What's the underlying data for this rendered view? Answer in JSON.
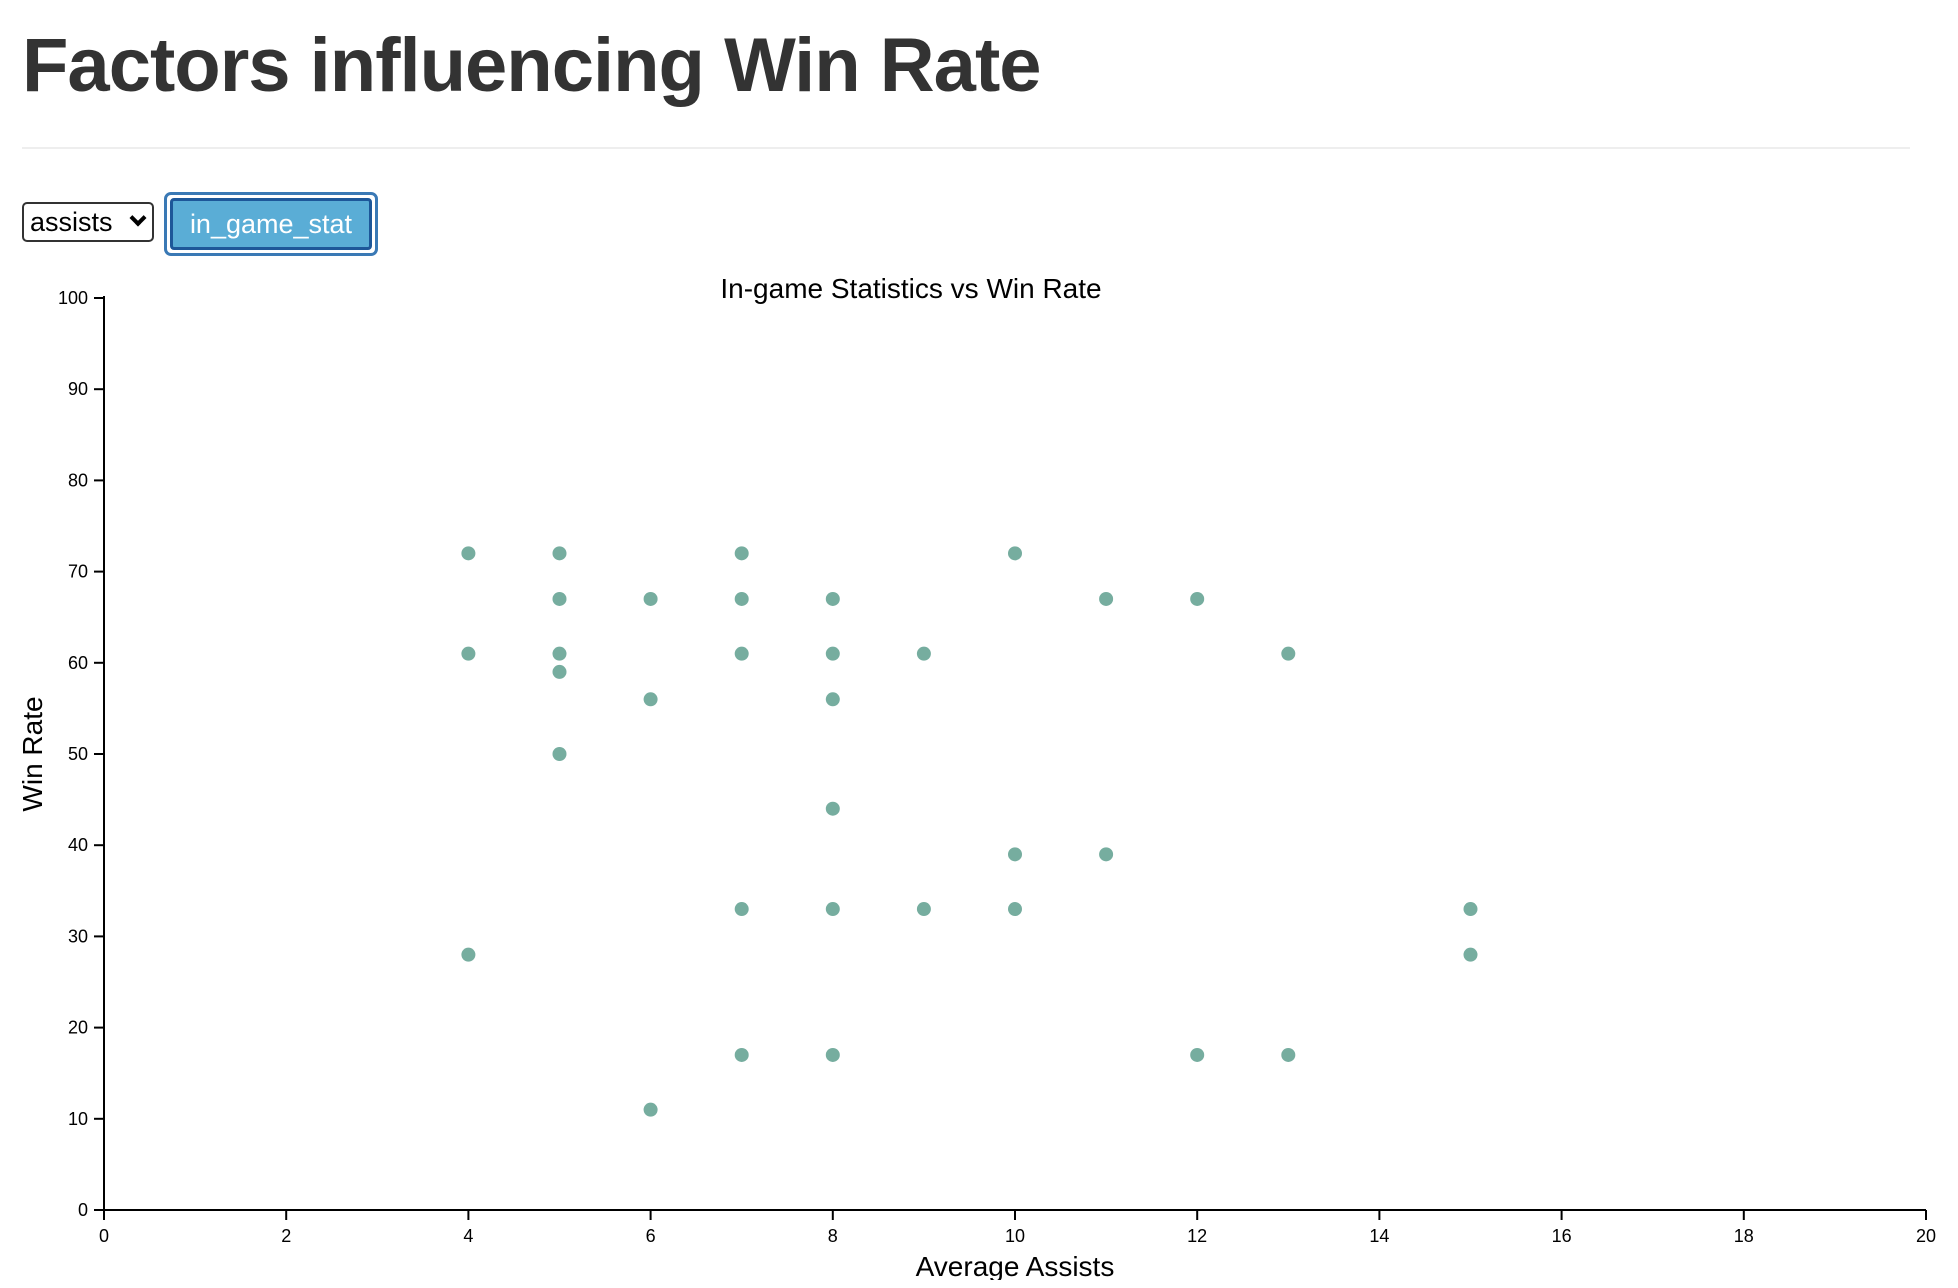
{
  "page": {
    "title": "Factors influencing Win Rate"
  },
  "controls": {
    "select_value": "assists",
    "button_label": "in_game_stat"
  },
  "colors": {
    "point": "#76ad9f",
    "axis": "#000000",
    "button_fill": "#5aadd6",
    "button_border": "#1d5799"
  },
  "chart_data": {
    "type": "scatter",
    "title": "In-game Statistics vs Win Rate",
    "xlabel": "Average Assists",
    "ylabel": "Win Rate",
    "xlim": [
      0,
      20
    ],
    "ylim": [
      0,
      100
    ],
    "x_ticks": [
      0,
      2,
      4,
      6,
      8,
      10,
      12,
      14,
      16,
      18,
      20
    ],
    "y_ticks": [
      0,
      10,
      20,
      30,
      40,
      50,
      60,
      70,
      80,
      90,
      100
    ],
    "grid": false,
    "points": [
      {
        "x": 4,
        "y": 72
      },
      {
        "x": 4,
        "y": 61
      },
      {
        "x": 4,
        "y": 28
      },
      {
        "x": 5,
        "y": 72
      },
      {
        "x": 5,
        "y": 67
      },
      {
        "x": 5,
        "y": 61
      },
      {
        "x": 5,
        "y": 59
      },
      {
        "x": 5,
        "y": 50
      },
      {
        "x": 6,
        "y": 67
      },
      {
        "x": 6,
        "y": 56
      },
      {
        "x": 6,
        "y": 11
      },
      {
        "x": 7,
        "y": 72
      },
      {
        "x": 7,
        "y": 67
      },
      {
        "x": 7,
        "y": 61
      },
      {
        "x": 7,
        "y": 33
      },
      {
        "x": 7,
        "y": 17
      },
      {
        "x": 8,
        "y": 67
      },
      {
        "x": 8,
        "y": 61
      },
      {
        "x": 8,
        "y": 56
      },
      {
        "x": 8,
        "y": 44
      },
      {
        "x": 8,
        "y": 33
      },
      {
        "x": 8,
        "y": 17
      },
      {
        "x": 9,
        "y": 61
      },
      {
        "x": 9,
        "y": 33
      },
      {
        "x": 10,
        "y": 72
      },
      {
        "x": 10,
        "y": 39
      },
      {
        "x": 10,
        "y": 33
      },
      {
        "x": 11,
        "y": 67
      },
      {
        "x": 11,
        "y": 39
      },
      {
        "x": 12,
        "y": 67
      },
      {
        "x": 12,
        "y": 17
      },
      {
        "x": 13,
        "y": 61
      },
      {
        "x": 13,
        "y": 17
      },
      {
        "x": 15,
        "y": 33
      },
      {
        "x": 15,
        "y": 28
      }
    ]
  }
}
